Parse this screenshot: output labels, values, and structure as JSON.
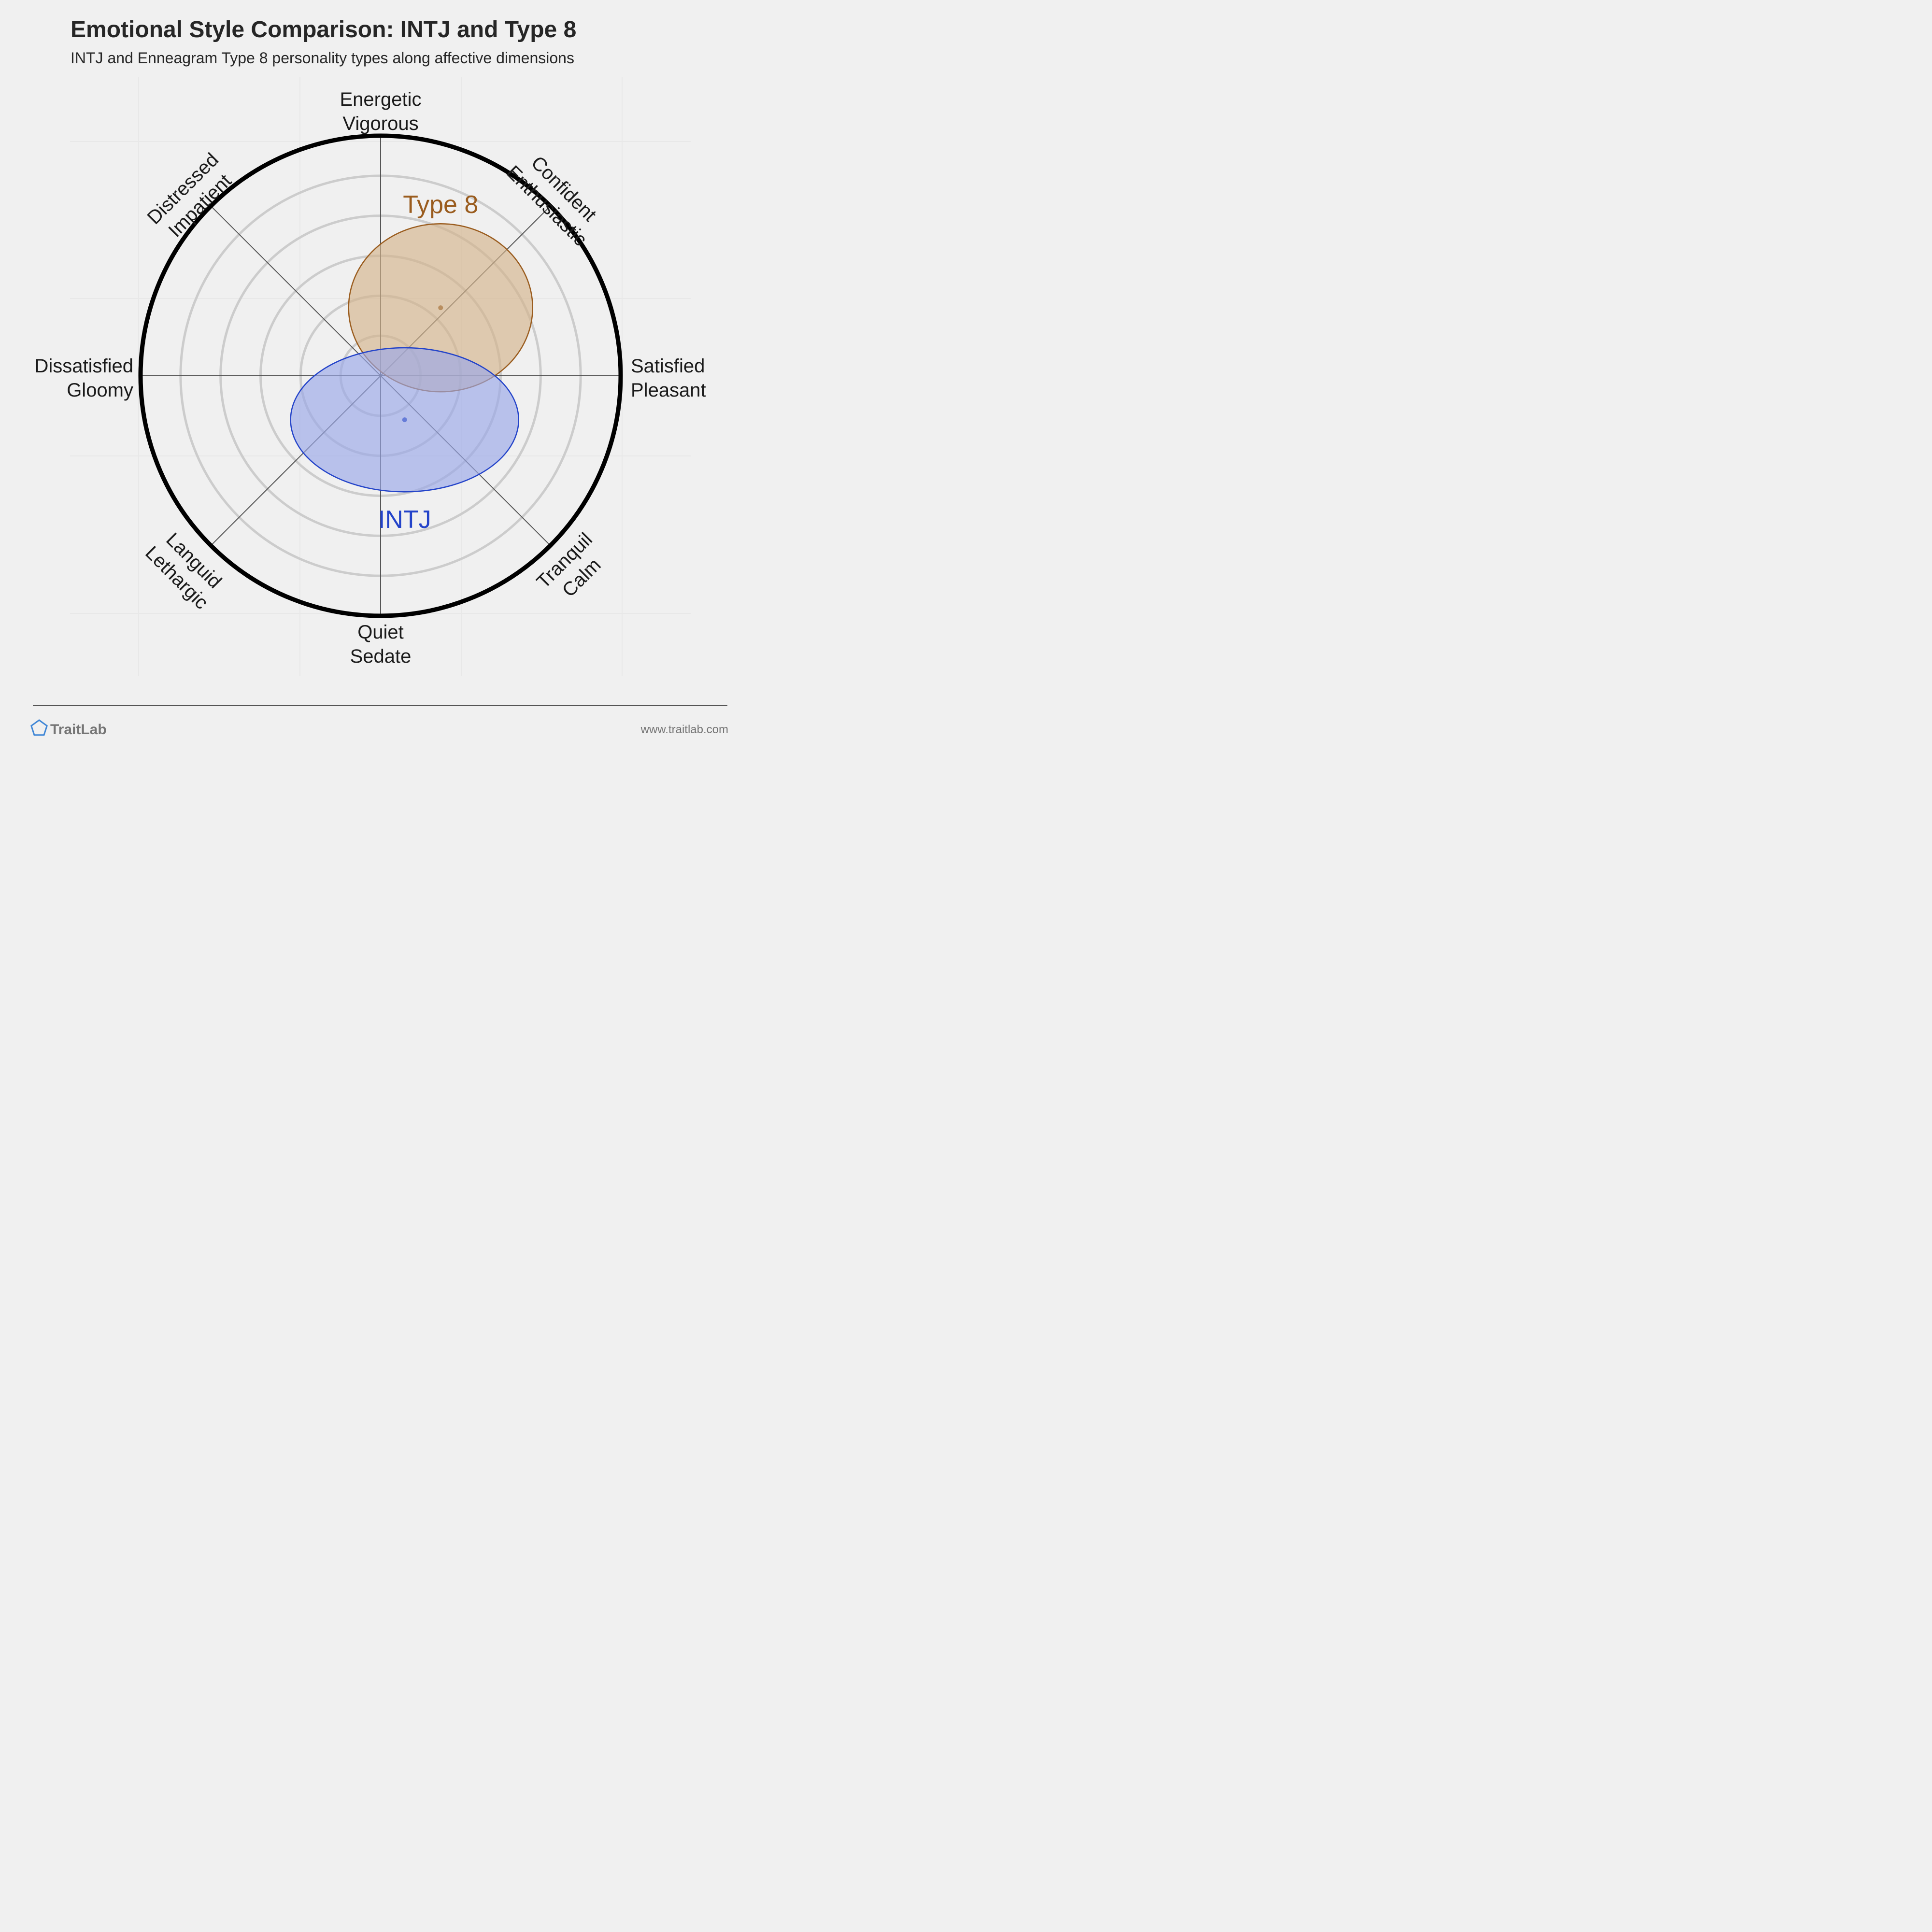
{
  "title": "Emotional Style Comparison: INTJ and Type 8",
  "subtitle": "INTJ and Enneagram Type 8 personality types along affective dimensions",
  "footer": {
    "brand": "TraitLab",
    "url": "www.traitlab.com",
    "logo_icon": "pentagon-icon"
  },
  "colors": {
    "background": "#f0f0f0",
    "ring": "#cccccc",
    "outer_ring": "#000000",
    "axis": "#555555",
    "type8": "#9a5c1e",
    "type8_fill": "#d4b48c",
    "intj": "#2343c9",
    "intj_fill": "#9aa8e8",
    "logo": "#3f86d6"
  },
  "chart_data": {
    "type": "radar-ellipse",
    "axes": [
      {
        "lines": [
          "Energetic",
          "Vigorous"
        ]
      },
      {
        "lines": [
          "Confident",
          "Enthusiastic"
        ]
      },
      {
        "lines": [
          "Satisfied",
          "Pleasant"
        ]
      },
      {
        "lines": [
          "Tranquil",
          "Calm"
        ]
      },
      {
        "lines": [
          "Quiet",
          "Sedate"
        ]
      },
      {
        "lines": [
          "Languid",
          "Lethargic"
        ]
      },
      {
        "lines": [
          "Dissatisfied",
          "Gloomy"
        ]
      },
      {
        "lines": [
          "Distressed",
          "Impatient"
        ]
      }
    ],
    "scale": {
      "min": 0,
      "max": 6,
      "rings": [
        1,
        2,
        3,
        4,
        5
      ],
      "outer": 6
    },
    "series": [
      {
        "name": "Type 8",
        "center": {
          "x": 1.5,
          "y": 1.7
        },
        "spread": {
          "x": 2.3,
          "y": 2.1
        }
      },
      {
        "name": "INTJ",
        "center": {
          "x": 0.6,
          "y": -1.1
        },
        "spread": {
          "x": 2.85,
          "y": 1.8
        }
      }
    ]
  }
}
